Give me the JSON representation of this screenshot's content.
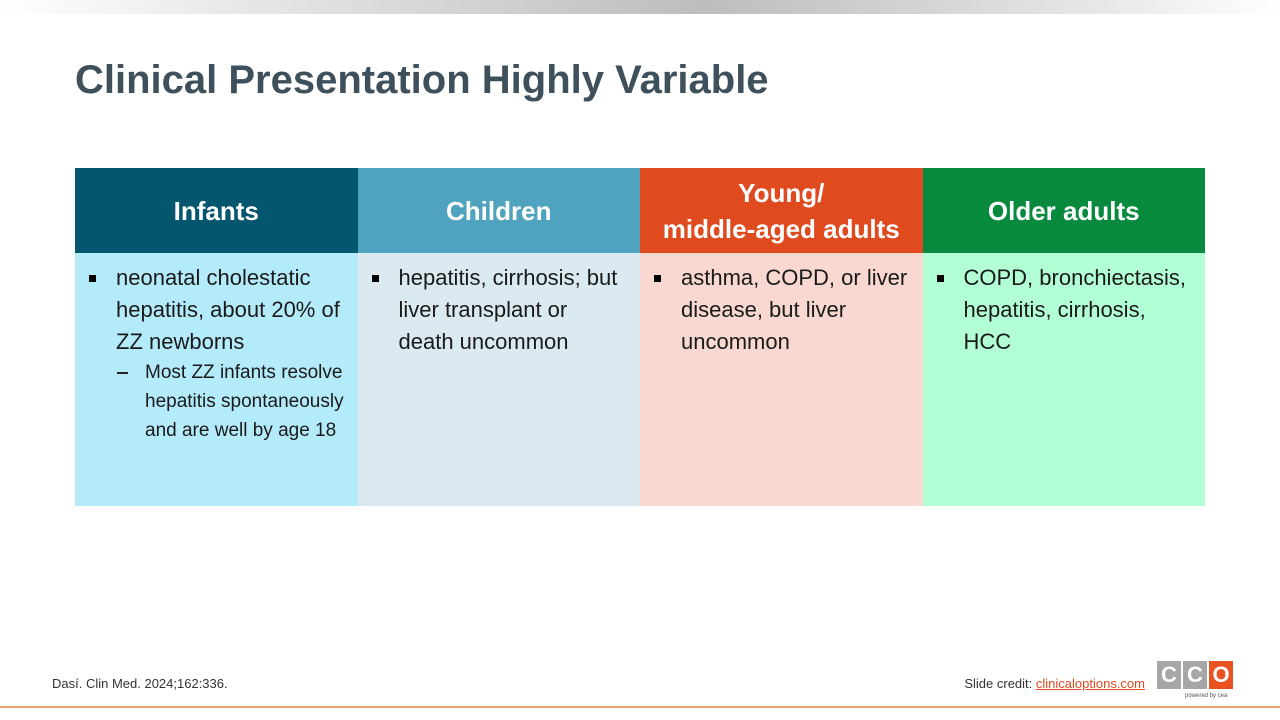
{
  "title": "Clinical Presentation Highly Variable",
  "columns": [
    {
      "header": "Infants",
      "bullets": [
        {
          "text": "neonatal cholestatic hepatitis, about 20% of ZZ newborns",
          "sub": [
            "Most ZZ infants resolve hepatitis spontaneously and are well by age 18"
          ]
        }
      ]
    },
    {
      "header": "Children",
      "bullets": [
        {
          "text": "hepatitis, cirrhosis; but liver transplant or death uncommon"
        }
      ]
    },
    {
      "header": "Young/\nmiddle-aged adults",
      "bullets": [
        {
          "text": "asthma, COPD, or liver disease, but liver uncommon"
        }
      ]
    },
    {
      "header": "Older adults",
      "bullets": [
        {
          "text": "COPD, bronchiectasis, hepatitis, cirrhosis, HCC"
        }
      ]
    }
  ],
  "footer": {
    "citation": "Dasí. Clin Med. 2024;162:336.",
    "credit_label": "Slide credit:",
    "credit_link": "clinicaloptions.com"
  },
  "logo": {
    "letters": [
      "C",
      "C",
      "O"
    ],
    "tagline": "powered by cea"
  }
}
